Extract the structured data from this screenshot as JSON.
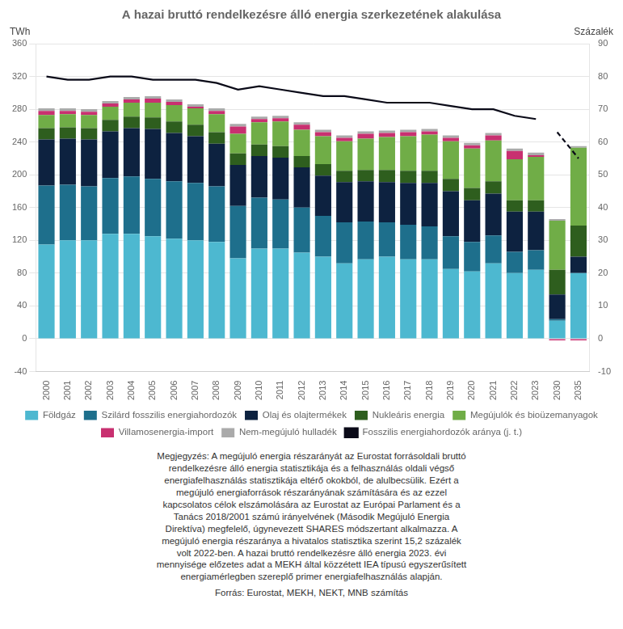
{
  "chart_data": {
    "type": "bar",
    "stacked": true,
    "title": "A hazai bruttó rendelkezésre álló energia szerkezetének alakulása",
    "ylabel": "TWh",
    "y2label": "Százalék",
    "categories": [
      "2000",
      "2001",
      "2002",
      "2003",
      "2004",
      "2005",
      "2006",
      "2007",
      "2008",
      "2009",
      "2010",
      "2011",
      "2012",
      "2013",
      "2014",
      "2015",
      "2016",
      "2017",
      "2018",
      "2019",
      "2020",
      "2021",
      "2022",
      "2023",
      "2030",
      "2035"
    ],
    "ylim": [
      -40,
      360
    ],
    "yticks": [
      -40,
      0,
      40,
      80,
      120,
      160,
      200,
      240,
      280,
      320,
      360
    ],
    "y2lim": [
      -10,
      90
    ],
    "y2ticks": [
      -10,
      0,
      10,
      20,
      30,
      40,
      50,
      60,
      70,
      80,
      90
    ],
    "grid": true,
    "legend": "bottom",
    "series": [
      {
        "name": "Földgáz",
        "type": "bar",
        "color": "#4db8d0",
        "values": [
          115,
          120,
          120,
          128,
          128,
          125,
          122,
          120,
          118,
          98,
          110,
          110,
          105,
          100,
          92,
          97,
          100,
          97,
          97,
          85,
          82,
          92,
          80,
          84,
          22,
          80
        ]
      },
      {
        "name": "Szilárd fosszilis energiahordozók",
        "type": "bar",
        "color": "#1e6f8c",
        "values": [
          72,
          68,
          66,
          68,
          70,
          70,
          70,
          70,
          68,
          64,
          62,
          60,
          55,
          50,
          50,
          46,
          42,
          42,
          40,
          40,
          36,
          34,
          26,
          24,
          2,
          0
        ]
      },
      {
        "name": "Olaj és olajtermékek",
        "type": "bar",
        "color": "#0d2240",
        "values": [
          56,
          56,
          57,
          57,
          59,
          61,
          59,
          57,
          52,
          50,
          51,
          51,
          49,
          49,
          49,
          49,
          49,
          51,
          53,
          55,
          51,
          51,
          49,
          47,
          30,
          20
        ]
      },
      {
        "name": "Nukleáris energia",
        "type": "bar",
        "color": "#2e5e1e",
        "values": [
          14,
          14,
          14,
          14,
          14,
          14,
          14,
          14,
          14,
          14,
          14,
          14,
          14,
          14,
          14,
          14,
          15,
          15,
          15,
          15,
          15,
          15,
          14,
          14,
          30,
          38
        ]
      },
      {
        "name": "Megújulók és bioüzemanyagok",
        "type": "bar",
        "color": "#70ad47",
        "values": [
          16,
          16,
          16,
          16,
          17,
          18,
          20,
          20,
          22,
          24,
          27,
          30,
          32,
          34,
          36,
          38,
          40,
          42,
          44,
          46,
          48,
          50,
          50,
          53,
          60,
          95
        ]
      },
      {
        "name": "Villamosenergia-import",
        "type": "bar",
        "color": "#c83070",
        "values": [
          5,
          4,
          4,
          4,
          4,
          5,
          4,
          2,
          4,
          9,
          4,
          4,
          6,
          5,
          4,
          6,
          5,
          5,
          4,
          4,
          4,
          6,
          10,
          2,
          -2,
          -2
        ]
      },
      {
        "name": "Nem-megújuló hulladék",
        "type": "bar",
        "color": "#aaaaaa",
        "values": [
          3,
          3,
          3,
          3,
          3,
          3,
          3,
          3,
          3,
          3,
          3,
          3,
          3,
          3,
          3,
          3,
          3,
          3,
          3,
          3,
          3,
          3,
          3,
          3,
          2,
          2
        ]
      },
      {
        "name": "Fosszilis energiahordozók aránya (j. t.)",
        "type": "line",
        "axis": "y2",
        "color": "#0a0a18",
        "line_style": "solid",
        "values": [
          80,
          79,
          79,
          80,
          80,
          79,
          79,
          79,
          78,
          76,
          77,
          76,
          75,
          74,
          74,
          73,
          72,
          72,
          72,
          71,
          70,
          70,
          68,
          67,
          null,
          null
        ]
      },
      {
        "name": "Fosszilis energiahordozók aránya (j. t.)",
        "type": "line",
        "axis": "y2",
        "color": "#0a0a18",
        "line_style": "dashed",
        "values": [
          null,
          null,
          null,
          null,
          null,
          null,
          null,
          null,
          null,
          null,
          null,
          null,
          null,
          null,
          null,
          null,
          null,
          null,
          null,
          null,
          null,
          null,
          null,
          null,
          63,
          55
        ]
      }
    ],
    "note": "Megjegyzés: A megújuló energia részarányát az Eurostat forrásoldali bruttó\nrendelkezésre álló energia statisztikája és a felhasználás oldali végső\nenergiafelhasználás statisztikája eltérő okokból, de alulbecsülik. Ezért a\nmegújuló energiaforrások részarányának számítására és az ezzel\nkapcsolatos célok elszámolására az Eurostat az Európai Parlament és a\nTanács 2018/2001 számú irányelvének (Második Megújuló Energia\nDirektíva) megfelelő, úgynevezett SHARES módszertant alkalmazza. A\nmegújuló energia részaránya a hivatalos statisztika szerint 15,2 százalék\nvolt 2022-ben. A hazai bruttó rendelkezésre álló energia 2023. évi\nmennyisége előzetes adat a MEKH által közzétett IEA típusú egyszerűsített\nenergiamérlegben szereplő primer energiafelhasználás alapján.",
    "source": "Forrás: Eurostat, MEKH, NEKT, MNB számítás"
  }
}
